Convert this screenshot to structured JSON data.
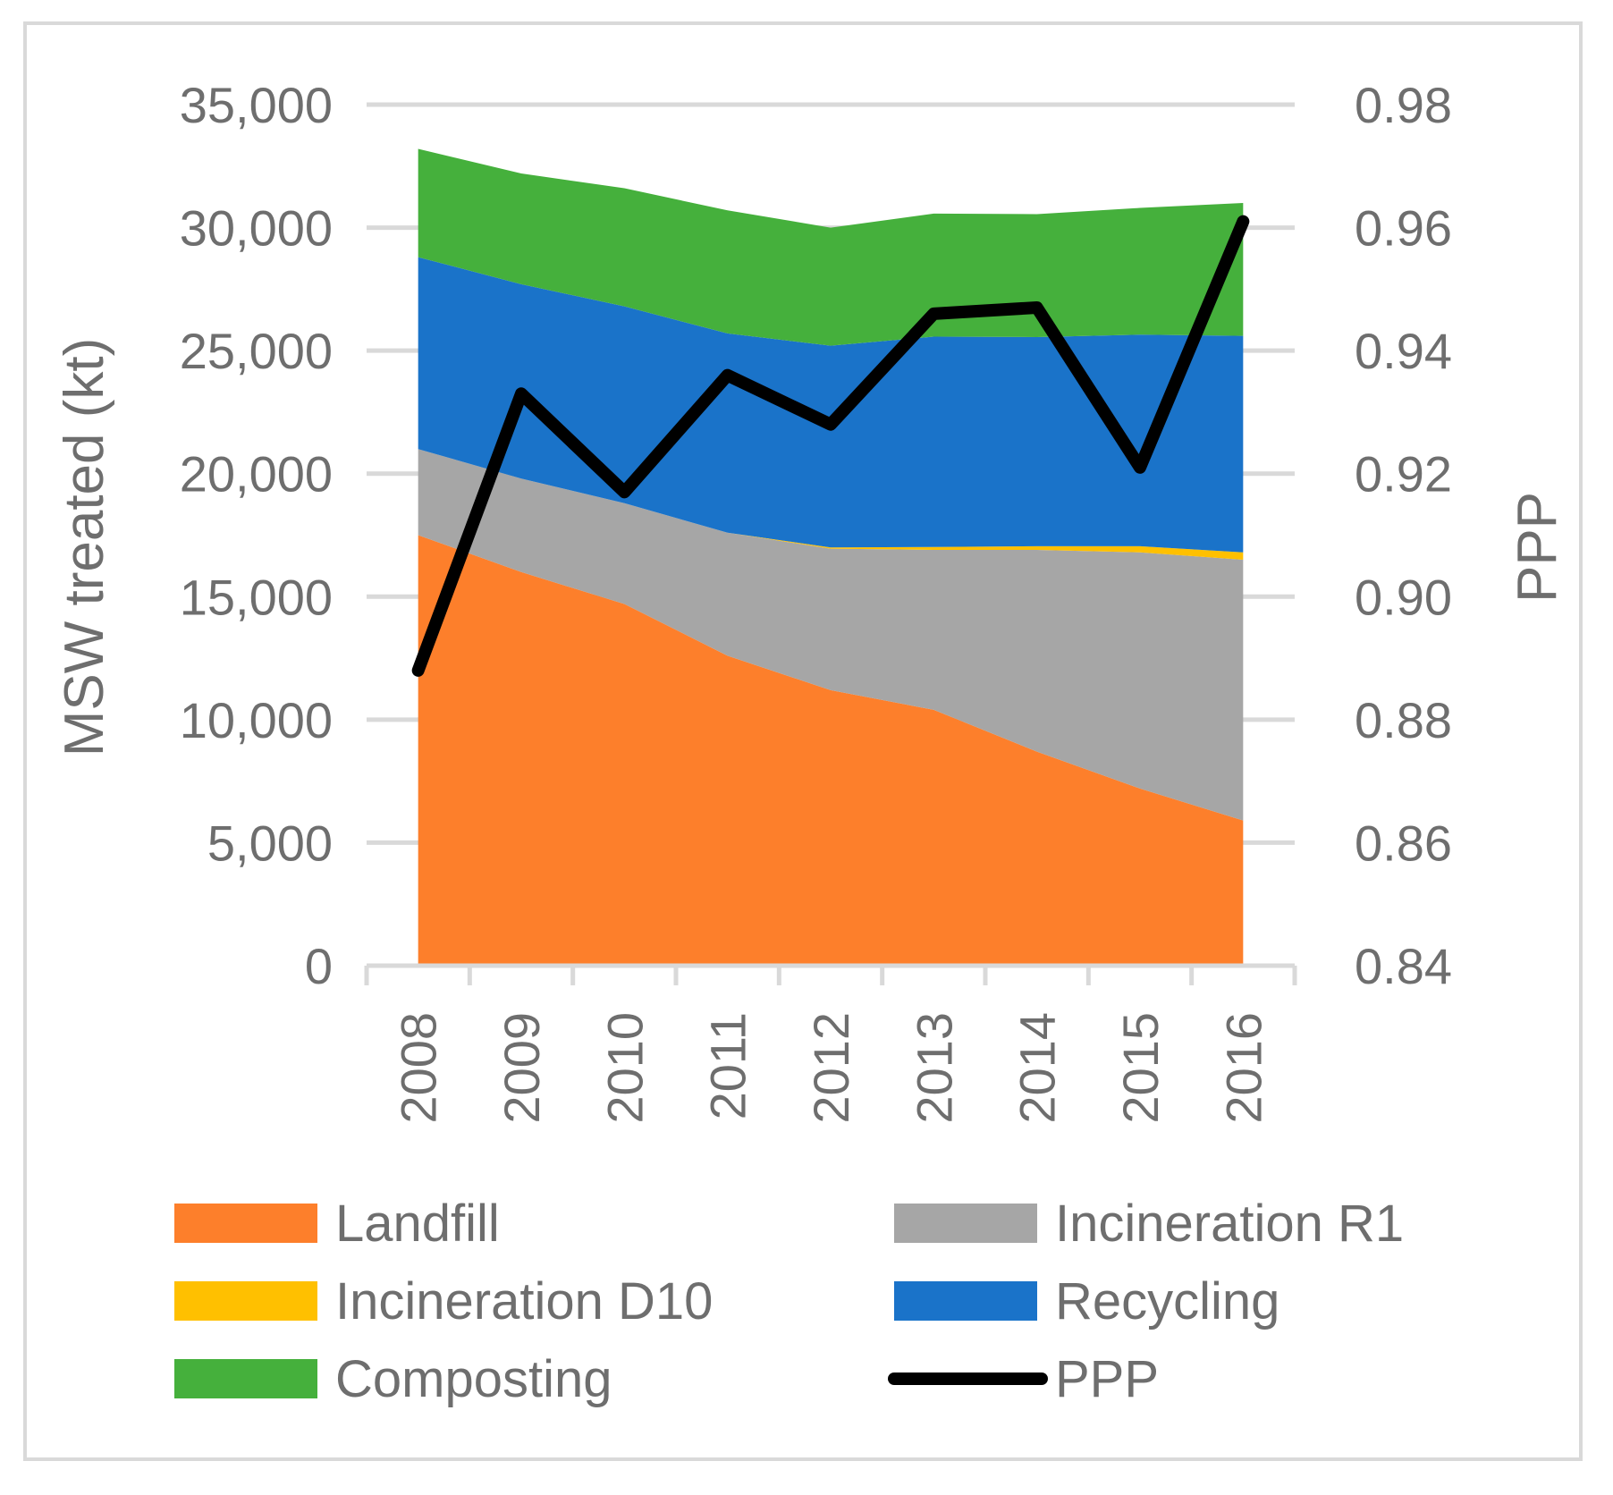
{
  "chart_data": {
    "type": "area",
    "title": "",
    "categories": [
      "2008",
      "2009",
      "2010",
      "2011",
      "2012",
      "2013",
      "2014",
      "2015",
      "2016"
    ],
    "stacked": true,
    "series": [
      {
        "name": "Landfill",
        "color": "#fd7f2b",
        "values": [
          17500,
          16000,
          14700,
          12600,
          11200,
          10400,
          8700,
          7200,
          5900
        ]
      },
      {
        "name": "Incineration R1",
        "color": "#a6a6a6",
        "values": [
          3500,
          3800,
          4100,
          5000,
          5750,
          6500,
          8200,
          9600,
          10600
        ]
      },
      {
        "name": "Incineration D10",
        "color": "#ffc000",
        "values": [
          0,
          0,
          0,
          0,
          50,
          120,
          150,
          250,
          300
        ]
      },
      {
        "name": "Recycling",
        "color": "#1a73c9",
        "values": [
          7800,
          7900,
          8000,
          8100,
          8200,
          8550,
          8500,
          8600,
          8800
        ]
      },
      {
        "name": "Composting",
        "color": "#45b03c",
        "values": [
          4400,
          4500,
          4800,
          5000,
          4800,
          5000,
          5000,
          5150,
          5400
        ]
      }
    ],
    "line_series": [
      {
        "name": "PPP",
        "color": "#000000",
        "axis": "right",
        "values": [
          0.888,
          0.933,
          0.917,
          0.936,
          0.928,
          0.946,
          0.947,
          0.921,
          0.961
        ]
      }
    ],
    "left_axis": {
      "label": "MSW treated (kt)",
      "ylim": [
        0,
        35000
      ],
      "ticks": [
        "0",
        "5,000",
        "10,000",
        "15,000",
        "20,000",
        "25,000",
        "30,000",
        "35,000"
      ]
    },
    "right_axis": {
      "label": "PPP",
      "ylim": [
        0.84,
        0.98
      ],
      "ticks": [
        "0.84",
        "0.86",
        "0.88",
        "0.90",
        "0.92",
        "0.94",
        "0.96",
        "0.98"
      ]
    },
    "grid": "horizontal",
    "legend": {
      "position": "bottom",
      "entries": [
        "Landfill",
        "Incineration R1",
        "Incineration D10",
        "Recycling",
        "Composting",
        "PPP"
      ]
    }
  }
}
